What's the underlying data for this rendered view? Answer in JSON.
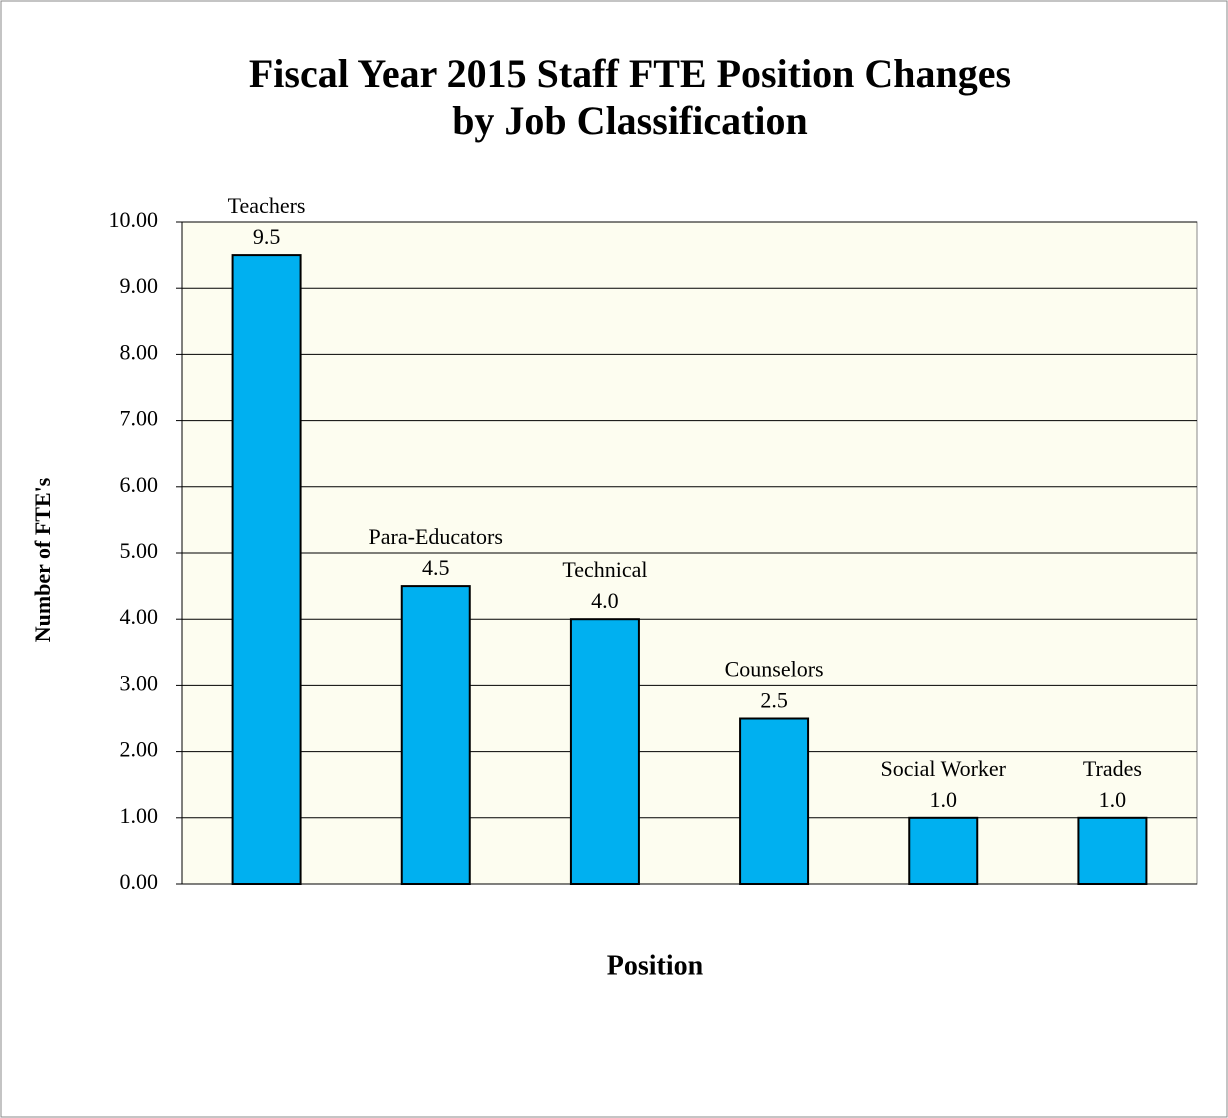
{
  "chart_data": {
    "type": "bar",
    "title": [
      "Fiscal Year 2015 Staff FTE Position Changes",
      "by Job Classification"
    ],
    "x_label": "Position",
    "y_label": "Number of FTE's",
    "categories": [
      "Teachers",
      "Para-Educators",
      "Technical",
      "Counselors",
      "Social Worker",
      "Trades"
    ],
    "values": [
      9.5,
      4.5,
      4.0,
      2.5,
      1.0,
      1.0
    ],
    "value_labels": [
      "9.5",
      "4.5",
      "4.0",
      "2.5",
      "1.0",
      "1.0"
    ],
    "color": "#00b0f0",
    "ylim": [
      0,
      10
    ],
    "yticks": [
      {
        "value": 0,
        "label": "0.00"
      },
      {
        "value": 1,
        "label": "1.00"
      },
      {
        "value": 2,
        "label": "2.00"
      },
      {
        "value": 3,
        "label": "3.00"
      },
      {
        "value": 4,
        "label": "4.00"
      },
      {
        "value": 5,
        "label": "5.00"
      },
      {
        "value": 6,
        "label": "6.00"
      },
      {
        "value": 7,
        "label": "7.00"
      },
      {
        "value": 8,
        "label": "8.00"
      },
      {
        "value": 9,
        "label": "9.00"
      },
      {
        "value": 10,
        "label": "10.00"
      }
    ],
    "grid": true
  }
}
